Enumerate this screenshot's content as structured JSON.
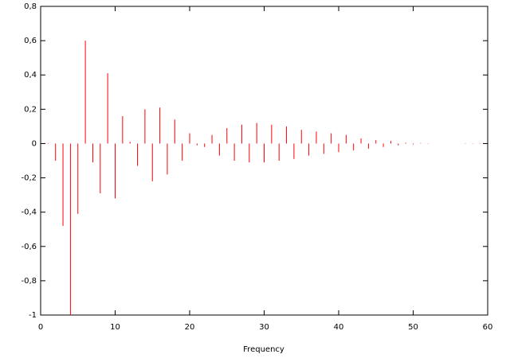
{
  "chart_data": {
    "type": "impulse",
    "x_label": "Frequency",
    "color": "#ff0000",
    "x": [
      1,
      2,
      3,
      4,
      5,
      6,
      7,
      8,
      9,
      10,
      11,
      12,
      13,
      14,
      15,
      16,
      17,
      18,
      19,
      20,
      21,
      22,
      23,
      24,
      25,
      26,
      27,
      28,
      29,
      30,
      31,
      32,
      33,
      34,
      35,
      36,
      37,
      38,
      39,
      40,
      41,
      42,
      43,
      44,
      45,
      46,
      47,
      48,
      49,
      50,
      51,
      52,
      57,
      58,
      59
    ],
    "values": [
      0.003,
      -0.1,
      -0.48,
      -1.0,
      -0.41,
      0.6,
      -0.11,
      -0.29,
      0.41,
      -0.32,
      0.16,
      0.01,
      -0.13,
      0.2,
      -0.22,
      0.21,
      -0.18,
      0.14,
      -0.1,
      0.06,
      -0.01,
      -0.02,
      0.05,
      -0.07,
      0.09,
      -0.1,
      0.11,
      -0.11,
      0.12,
      -0.11,
      0.11,
      -0.1,
      0.1,
      -0.09,
      0.08,
      -0.07,
      0.07,
      -0.06,
      0.06,
      -0.05,
      0.05,
      -0.04,
      0.03,
      -0.03,
      0.02,
      -0.02,
      0.015,
      -0.01,
      0.005,
      -0.005,
      0.003,
      -0.002,
      0.002,
      0.002,
      0.002
    ],
    "xlim": [
      0,
      60
    ],
    "xticks": [
      0,
      10,
      20,
      30,
      40,
      50,
      60
    ],
    "ylim": [
      -1,
      0.8
    ],
    "yticks": [
      -1,
      {
        "value": -0.8,
        "label": "-0,8"
      },
      {
        "value": -0.6,
        "label": "-0,6"
      },
      {
        "value": -0.4,
        "label": "-0,4"
      },
      {
        "value": -0.2,
        "label": "-0,2"
      },
      0,
      {
        "value": 0.2,
        "label": "0,2"
      },
      {
        "value": 0.4,
        "label": "0,4"
      },
      {
        "value": 0.6,
        "label": "0,6"
      },
      {
        "value": 0.8,
        "label": "0,8"
      }
    ]
  }
}
